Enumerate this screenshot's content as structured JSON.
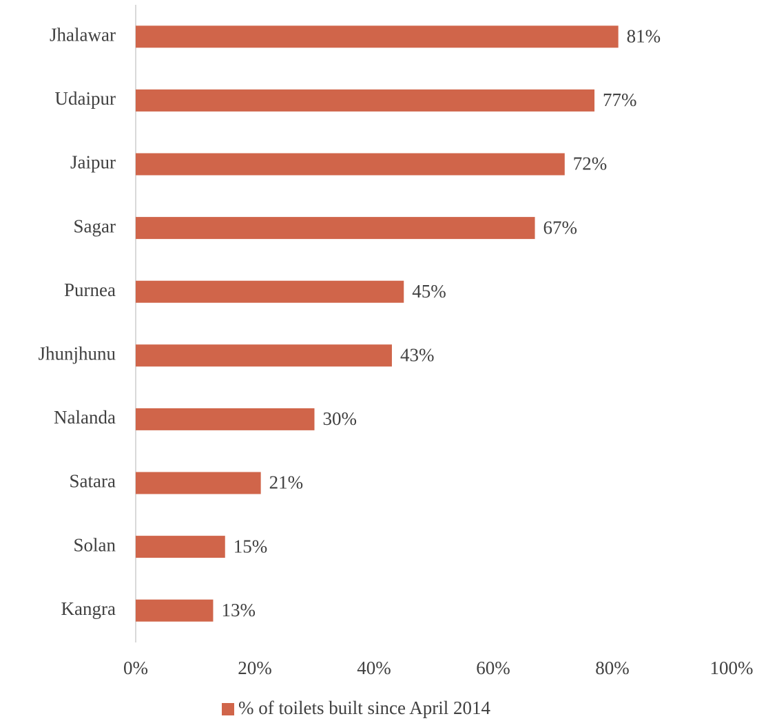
{
  "chart_data": {
    "type": "barh",
    "categories": [
      "Jhalawar",
      "Udaipur",
      "Jaipur",
      "Sagar",
      "Purnea",
      "Jhunjhunu",
      "Nalanda",
      "Satara",
      "Solan",
      "Kangra"
    ],
    "series": [
      {
        "name": "% of toilets built since April 2014",
        "color": "#d0654a",
        "values": [
          81,
          77,
          72,
          67,
          45,
          43,
          30,
          21,
          15,
          13
        ],
        "value_labels": [
          "81%",
          "77%",
          "72%",
          "67%",
          "45%",
          "43%",
          "30%",
          "21%",
          "15%",
          "13%"
        ]
      }
    ],
    "xlim": [
      0,
      100
    ],
    "xticks": [
      {
        "value": 0,
        "label": "0%"
      },
      {
        "value": 20,
        "label": "20%"
      },
      {
        "value": 40,
        "label": "40%"
      },
      {
        "value": 60,
        "label": "60%"
      },
      {
        "value": 80,
        "label": "80%"
      },
      {
        "value": 100,
        "label": "100%"
      }
    ],
    "grid": false,
    "legend": "bottom"
  }
}
